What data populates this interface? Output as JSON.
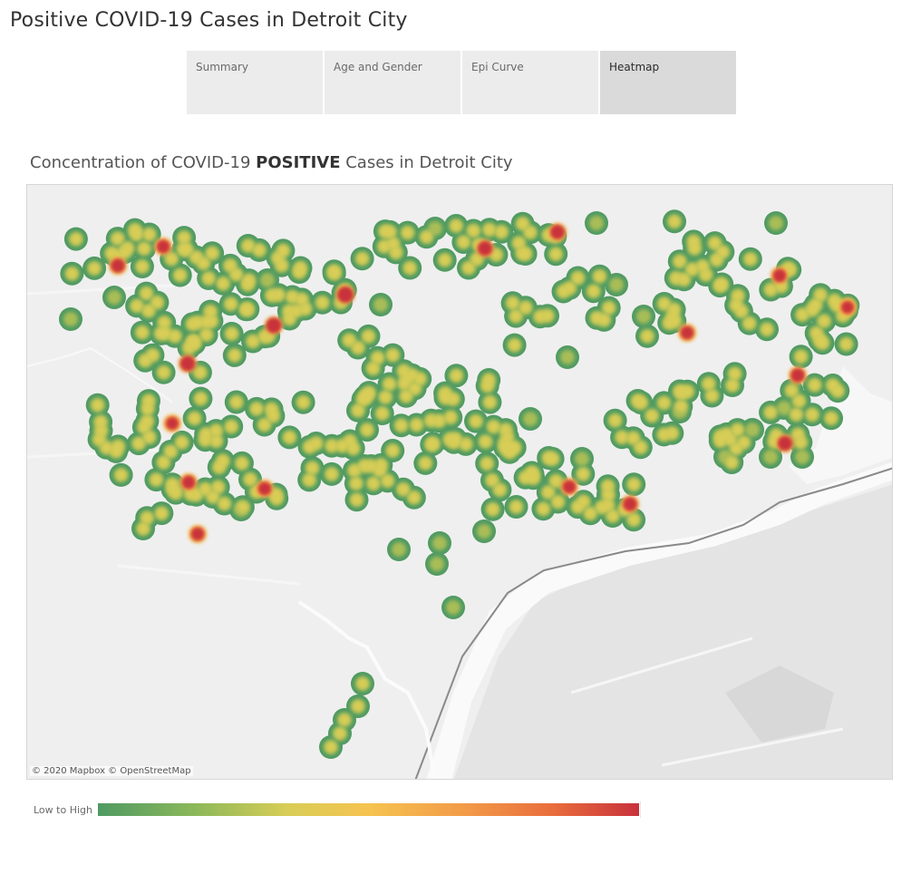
{
  "page": {
    "title": "Positive COVID-19 Cases in Detroit City"
  },
  "tabs": [
    {
      "label": "Summary",
      "active": false
    },
    {
      "label": "Age and Gender",
      "active": false
    },
    {
      "label": "Epi Curve",
      "active": false
    },
    {
      "label": "Heatmap",
      "active": true
    }
  ],
  "map": {
    "title_pre": "Concentration of COVID-19 ",
    "title_bold": "POSITIVE",
    "title_post": " Cases in Detroit City",
    "attribution": "© 2020 Mapbox © OpenStreetMap",
    "basemap": "light gray (Mapbox)",
    "river": "Detroit River",
    "colors": {
      "low": "#4f9a62",
      "mid_low": "#d8cd56",
      "mid": "#f6c350",
      "mid_high": "#e96d3d",
      "high": "#c8313b"
    }
  },
  "legend": {
    "label": "Low to High"
  }
}
